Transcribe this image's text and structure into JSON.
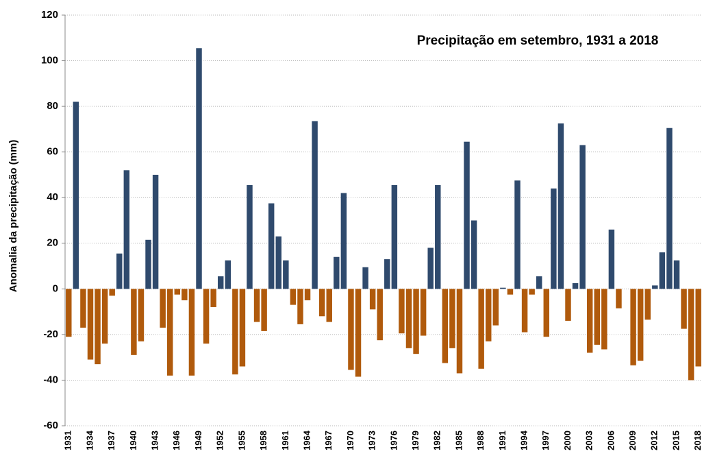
{
  "chart_data": {
    "type": "bar",
    "title": "Precipitação em setembro, 1931 a 2018",
    "y_label": "Anomalia da precipitação (mm)",
    "categories": [
      "1931",
      null,
      null,
      "1934",
      null,
      null,
      "1937",
      null,
      null,
      "1940",
      null,
      null,
      "1943",
      null,
      null,
      "1946",
      null,
      null,
      "1949",
      null,
      null,
      "1952",
      null,
      null,
      "1955",
      null,
      null,
      "1958",
      null,
      null,
      "1961",
      null,
      null,
      "1964",
      null,
      null,
      "1967",
      null,
      null,
      "1970",
      null,
      null,
      "1973",
      null,
      null,
      "1976",
      null,
      null,
      "1979",
      null,
      null,
      "1982",
      null,
      null,
      "1985",
      null,
      null,
      "1988",
      null,
      null,
      "1991",
      null,
      null,
      "1994",
      null,
      null,
      "1997",
      null,
      null,
      "2000",
      null,
      null,
      "2003",
      null,
      null,
      "2006",
      null,
      null,
      "2009",
      null,
      null,
      "2012",
      null,
      null,
      "2015",
      null,
      null,
      "2018"
    ],
    "values": [
      -21,
      82,
      -17,
      -31,
      -33,
      -24,
      -3,
      15.5,
      52,
      -29,
      -23,
      21.5,
      50,
      -17,
      -38,
      -2.5,
      -5,
      -38,
      105.5,
      -24,
      -8,
      5.5,
      12.5,
      -37.5,
      -34,
      45.5,
      -14.5,
      -18.5,
      37.5,
      23,
      12.5,
      -7,
      -15.5,
      -5,
      73.5,
      -12,
      -14.5,
      14,
      42,
      -35.5,
      -38.5,
      9.5,
      -9,
      -22.5,
      13,
      45.5,
      -19.5,
      -26,
      -28.5,
      -20.5,
      18,
      45.5,
      -32.5,
      -26,
      -37,
      64.5,
      30,
      -35,
      -23,
      -16,
      0.5,
      -2.5,
      47.5,
      -19,
      -2.5,
      5.5,
      -21,
      44,
      72.5,
      -14,
      2.5,
      63,
      -28,
      -24.5,
      -26.5,
      26,
      -8.5,
      0,
      -33.5,
      -31.5,
      -13.5,
      1.5,
      16,
      70.5,
      12.5,
      -17.5,
      -40,
      -34
    ],
    "positive_color": "#2f4a6d",
    "negative_color": "#b05a0c",
    "ylim": [
      -60,
      120
    ],
    "yticks": [
      -60,
      -40,
      -20,
      0,
      20,
      40,
      60,
      80,
      100,
      120
    ],
    "grid": true
  }
}
